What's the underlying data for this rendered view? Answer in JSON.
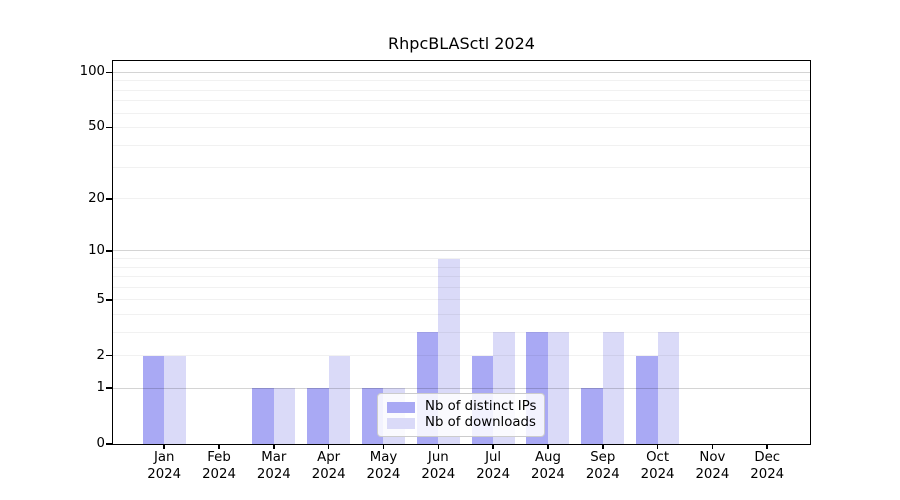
{
  "chart_data": {
    "type": "bar",
    "title": "RhpcBLASctl 2024",
    "categories": [
      "Jan 2024",
      "Feb 2024",
      "Mar 2024",
      "Apr 2024",
      "May 2024",
      "Jun 2024",
      "Jul 2024",
      "Aug 2024",
      "Sep 2024",
      "Oct 2024",
      "Nov 2024",
      "Dec 2024"
    ],
    "series": [
      {
        "name": "Nb of distinct IPs",
        "color": "#a9a9f4",
        "values": [
          2,
          0,
          1,
          1,
          1,
          3,
          2,
          3,
          1,
          2,
          0,
          0
        ]
      },
      {
        "name": "Nb of downloads",
        "color": "#dadaf8",
        "values": [
          2,
          0,
          1,
          2,
          1,
          9,
          3,
          3,
          3,
          3,
          0,
          0
        ]
      }
    ],
    "xlabel": "",
    "ylabel": "",
    "yscale": "log1p",
    "ylim": [
      0,
      115
    ],
    "yticks": [
      0,
      1,
      2,
      5,
      10,
      20,
      50,
      100
    ],
    "gridlines_major": [
      1,
      10,
      100
    ],
    "gridlines_minor": [
      2,
      3,
      4,
      5,
      6,
      7,
      8,
      9,
      20,
      30,
      40,
      50,
      60,
      70,
      80,
      90
    ],
    "grid": true,
    "legend_position": "inside-bottom-center"
  }
}
